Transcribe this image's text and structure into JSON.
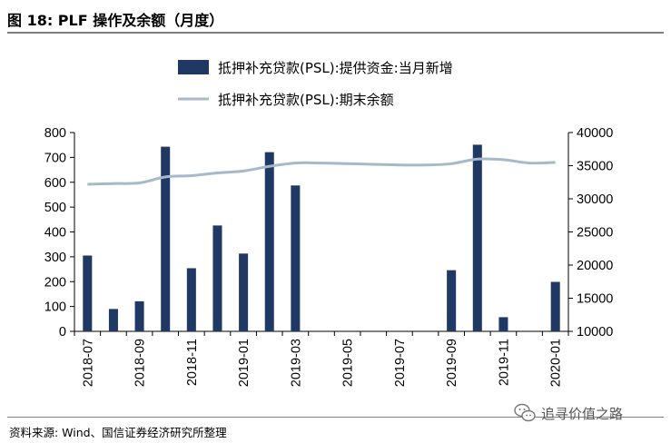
{
  "figure": {
    "title": "图 18:  PLF 操作及余额（月度）",
    "source": "资料来源: Wind、国信证券经济研究所整理",
    "watermark": "追寻价值之路"
  },
  "chart_data": {
    "type": "bar",
    "x": [
      "2018-07",
      "2018-08",
      "2018-09",
      "2018-10",
      "2018-11",
      "2018-12",
      "2019-01",
      "2019-02",
      "2019-03",
      "2019-04",
      "2019-05",
      "2019-06",
      "2019-07",
      "2019-08",
      "2019-09",
      "2019-10",
      "2019-11",
      "2019-12",
      "2020-01"
    ],
    "x_tick_labels": [
      "2018-07",
      "2018-09",
      "2018-11",
      "2019-01",
      "2019-03",
      "2019-05",
      "2019-07",
      "2019-09",
      "2019-11",
      "2020-01"
    ],
    "series": [
      {
        "name": "抵押补充贷款(PSL):提供资金:当月新增",
        "type": "bar",
        "axis": "left",
        "color": "#1f3864",
        "values": [
          305,
          90,
          121,
          743,
          254,
          426,
          313,
          721,
          587,
          0,
          0,
          0,
          0,
          0,
          246,
          751,
          57,
          0,
          199
        ]
      },
      {
        "name": "抵押补充贷款(PSL):期末余额",
        "type": "line",
        "axis": "right",
        "color": "#a6b9cb",
        "values": [
          32200,
          32300,
          32400,
          33300,
          33500,
          33900,
          34200,
          34900,
          35400,
          35400,
          35300,
          35200,
          35100,
          35100,
          35300,
          36000,
          35900,
          35400,
          35500
        ]
      }
    ],
    "y_left": {
      "lim": [
        0,
        800
      ],
      "ticks": [
        0,
        100,
        200,
        300,
        400,
        500,
        600,
        700,
        800
      ]
    },
    "y_right": {
      "lim": [
        10000,
        40000
      ],
      "ticks": [
        10000,
        15000,
        20000,
        25000,
        30000,
        35000,
        40000
      ]
    },
    "legend_position": "top-center",
    "grid": false
  }
}
